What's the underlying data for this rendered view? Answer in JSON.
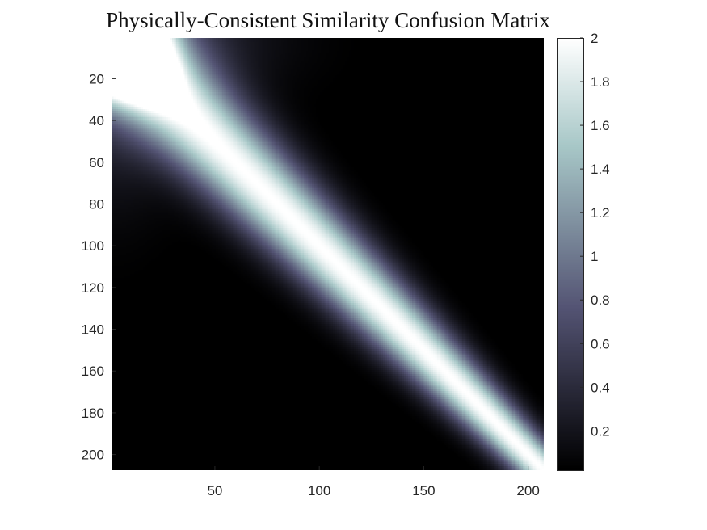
{
  "chart_data": {
    "type": "heatmap",
    "title": "Physically-Consistent Similarity Confusion Matrix",
    "xlabel": "",
    "ylabel": "",
    "matrix_size": 207,
    "x_range": [
      0.5,
      207.5
    ],
    "y_range": [
      0.5,
      207.5
    ],
    "y_direction": "reversed",
    "x_ticks": [
      50,
      100,
      150,
      200
    ],
    "x_tick_labels": [
      "50",
      "100",
      "150",
      "200"
    ],
    "y_ticks": [
      20,
      40,
      60,
      80,
      100,
      120,
      140,
      160,
      180,
      200
    ],
    "y_tick_labels": [
      "20",
      "40",
      "60",
      "80",
      "100",
      "120",
      "140",
      "160",
      "180",
      "200"
    ],
    "colormap": "bone",
    "color_limits": [
      0.02,
      2
    ],
    "colorbar": {
      "location": "right",
      "ticks": [
        0.2,
        0.4,
        0.6,
        0.8,
        1,
        1.2,
        1.4,
        1.6,
        1.8,
        2
      ],
      "tick_labels": [
        "0.2",
        "0.4",
        "0.6",
        "0.8",
        "1",
        "1.2",
        "1.4",
        "1.6",
        "1.8",
        "2"
      ]
    },
    "pattern": {
      "diagonal_value": 2,
      "off_diagonal_min": 0.02,
      "band_width_start": 34,
      "band_width_end": 14,
      "bright_corner_extent": 30,
      "mid_glow_center": 28,
      "mid_glow_extent": 65
    }
  }
}
